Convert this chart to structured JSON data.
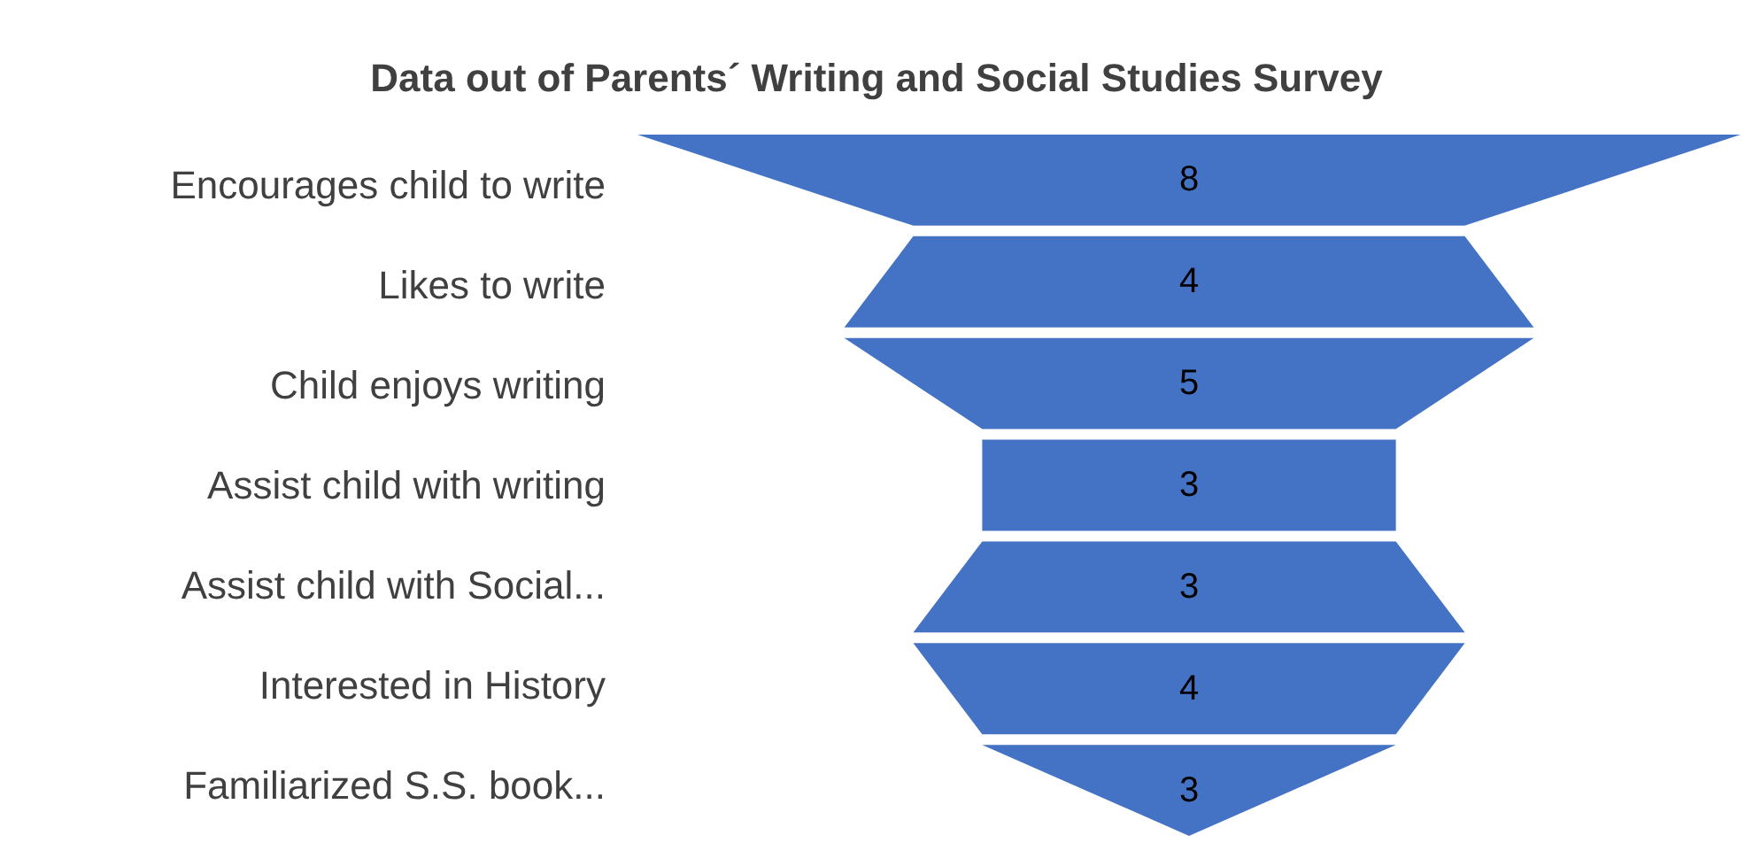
{
  "chart_data": {
    "type": "other",
    "title": "Data out of Parents´ Writing and Social Studies Survey",
    "categories": [
      "Encourages child to write",
      "Likes to write",
      "Child enjoys writing",
      "Assist child with writing",
      "Assist child with Social...",
      "Interested in History",
      "Familiarized S.S. book..."
    ],
    "values": [
      8,
      4,
      5,
      3,
      3,
      4,
      3
    ],
    "color": "#4472c4",
    "data_labels": true
  }
}
